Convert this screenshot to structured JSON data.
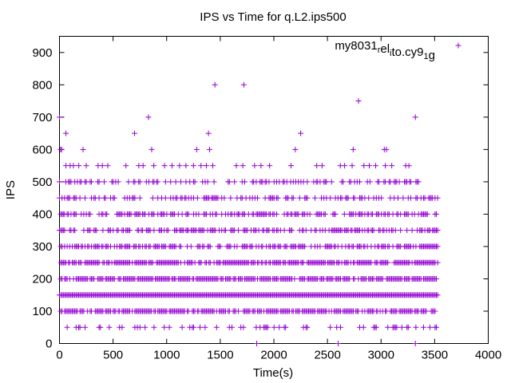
{
  "chart_data": {
    "type": "scatter",
    "title": "IPS vs Time for q.L2.ips500",
    "xlabel": "Time(s)",
    "ylabel": "IPS",
    "xlim": [
      0,
      4000
    ],
    "ylim": [
      0,
      950
    ],
    "x_ticks": [
      0,
      500,
      1000,
      1500,
      2000,
      2500,
      3000,
      3500,
      4000
    ],
    "y_ticks": [
      0,
      100,
      200,
      300,
      400,
      500,
      600,
      700,
      800,
      900
    ],
    "x_tick_labels": [
      "0",
      "500",
      "1000",
      "1500",
      "2000",
      "2500",
      "3000",
      "3500",
      "4000"
    ],
    "y_tick_labels": [
      "0",
      "100",
      "200",
      "300",
      "400",
      "500",
      "600",
      "700",
      "800",
      "900"
    ],
    "grid": false,
    "legend_position": "top-right",
    "marker": "+",
    "series": [
      {
        "name_parts": {
          "base": "my8031",
          "s1": "r",
          "mid": "el",
          "s2": "i",
          "mid2": "to.cy9",
          "s3": "1",
          "end": "g"
        },
        "color": "#9400d3",
        "levels": [
          {
            "ips": 50,
            "x_range": [
              0,
              3530
            ],
            "density": 0.25
          },
          {
            "ips": 100,
            "x_range": [
              0,
              3530
            ],
            "density": 0.8
          },
          {
            "ips": 150,
            "x_range": [
              0,
              3530
            ],
            "density": 1.0
          },
          {
            "ips": 200,
            "x_range": [
              0,
              3530
            ],
            "density": 0.85
          },
          {
            "ips": 250,
            "x_range": [
              0,
              3530
            ],
            "density": 0.8
          },
          {
            "ips": 300,
            "x_range": [
              0,
              3530
            ],
            "density": 0.6
          },
          {
            "ips": 350,
            "x_range": [
              0,
              3530
            ],
            "density": 0.55
          },
          {
            "ips": 400,
            "x_range": [
              0,
              3530
            ],
            "density": 0.6
          },
          {
            "ips": 450,
            "x_range": [
              0,
              3530
            ],
            "density": 0.45
          },
          {
            "ips": 500,
            "x_range": [
              0,
              3350
            ],
            "density": 0.4
          }
        ],
        "points": [
          [
            1840,
            0
          ],
          [
            2600,
            0
          ],
          [
            3320,
            0
          ],
          [
            60,
            550
          ],
          [
            100,
            550
          ],
          [
            130,
            550
          ],
          [
            180,
            550
          ],
          [
            250,
            550
          ],
          [
            360,
            550
          ],
          [
            400,
            550
          ],
          [
            450,
            550
          ],
          [
            620,
            550
          ],
          [
            740,
            550
          ],
          [
            780,
            550
          ],
          [
            880,
            550
          ],
          [
            980,
            550
          ],
          [
            1050,
            550
          ],
          [
            1120,
            550
          ],
          [
            1180,
            550
          ],
          [
            1250,
            550
          ],
          [
            1320,
            550
          ],
          [
            1370,
            550
          ],
          [
            1430,
            550
          ],
          [
            1650,
            550
          ],
          [
            1710,
            550
          ],
          [
            1820,
            550
          ],
          [
            1880,
            550
          ],
          [
            1960,
            550
          ],
          [
            2160,
            550
          ],
          [
            2400,
            550
          ],
          [
            2450,
            550
          ],
          [
            2620,
            550
          ],
          [
            2660,
            550
          ],
          [
            2730,
            550
          ],
          [
            2840,
            550
          ],
          [
            2890,
            550
          ],
          [
            2950,
            550
          ],
          [
            3040,
            550
          ],
          [
            3100,
            550
          ],
          [
            3230,
            550
          ],
          [
            3260,
            550
          ],
          [
            10,
            600
          ],
          [
            20,
            600
          ],
          [
            220,
            600
          ],
          [
            860,
            600
          ],
          [
            1280,
            600
          ],
          [
            1400,
            600
          ],
          [
            2200,
            600
          ],
          [
            2740,
            600
          ],
          [
            3030,
            600
          ],
          [
            3050,
            600
          ],
          [
            60,
            650
          ],
          [
            700,
            650
          ],
          [
            1390,
            650
          ],
          [
            2250,
            650
          ],
          [
            0,
            700
          ],
          [
            830,
            700
          ],
          [
            3320,
            700
          ],
          [
            2790,
            750
          ],
          [
            1450,
            800
          ],
          [
            1720,
            800
          ]
        ]
      }
    ]
  }
}
